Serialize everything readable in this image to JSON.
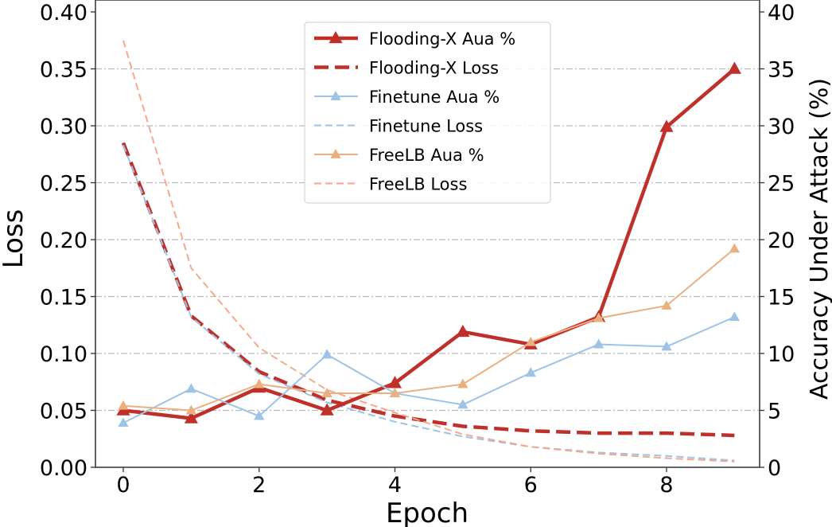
{
  "chart_data": {
    "type": "line",
    "xlabel": "Epoch",
    "ylabel_left": "Loss",
    "ylabel_right": "Accuracy Under Attack (%)",
    "xlim": [
      -0.4,
      9.4
    ],
    "ylim_left": [
      0,
      0.4
    ],
    "ylim_right": [
      0,
      40
    ],
    "x_ticks": [
      "0",
      "2",
      "4",
      "6",
      "8"
    ],
    "y_left_ticks": [
      "0.00",
      "0.05",
      "0.10",
      "0.15",
      "0.20",
      "0.25",
      "0.30",
      "0.35",
      "0.40"
    ],
    "y_right_ticks": [
      "0",
      "5",
      "10",
      "15",
      "20",
      "25",
      "30",
      "35",
      "40"
    ],
    "grid": "horizontal dash-dot",
    "legend_position": "top-center",
    "x": [
      0,
      1,
      2,
      3,
      4,
      5,
      6,
      7,
      8,
      9
    ],
    "series": [
      {
        "name": "Flooding-X Aua %",
        "axis": "right",
        "style": "solid-triangle",
        "color": "#c0302a",
        "width": 4.5,
        "values": [
          5.0,
          4.3,
          7.0,
          5.0,
          7.4,
          11.9,
          10.8,
          13.2,
          29.9,
          35.0
        ]
      },
      {
        "name": "Flooding-X Loss",
        "axis": "left",
        "style": "dashed",
        "color": "#c0302a",
        "width": 4.5,
        "values": [
          0.285,
          0.133,
          0.084,
          0.059,
          0.045,
          0.036,
          0.032,
          0.03,
          0.03,
          0.028
        ]
      },
      {
        "name": "Finetune Aua %",
        "axis": "right",
        "style": "solid-triangle",
        "color": "#9dc3e6",
        "width": 2,
        "values": [
          3.9,
          6.9,
          4.5,
          9.9,
          6.5,
          5.5,
          8.3,
          10.8,
          10.6,
          13.2
        ]
      },
      {
        "name": "Finetune Loss",
        "axis": "left",
        "style": "dashed",
        "color": "#9dc3e6",
        "width": 2,
        "values": [
          0.283,
          0.132,
          0.082,
          0.057,
          0.04,
          0.027,
          0.018,
          0.013,
          0.01,
          0.006
        ]
      },
      {
        "name": "FreeLB Aua %",
        "axis": "right",
        "style": "solid-triangle",
        "color": "#ebb080",
        "width": 2,
        "values": [
          5.4,
          5.0,
          7.3,
          6.5,
          6.5,
          7.3,
          11.0,
          13.1,
          14.2,
          19.2
        ]
      },
      {
        "name": "FreeLB Loss",
        "axis": "left",
        "style": "dashed",
        "color": "#f4a98a",
        "width": 2,
        "values": [
          0.375,
          0.175,
          0.105,
          0.068,
          0.048,
          0.029,
          0.018,
          0.012,
          0.008,
          0.005
        ]
      }
    ]
  }
}
